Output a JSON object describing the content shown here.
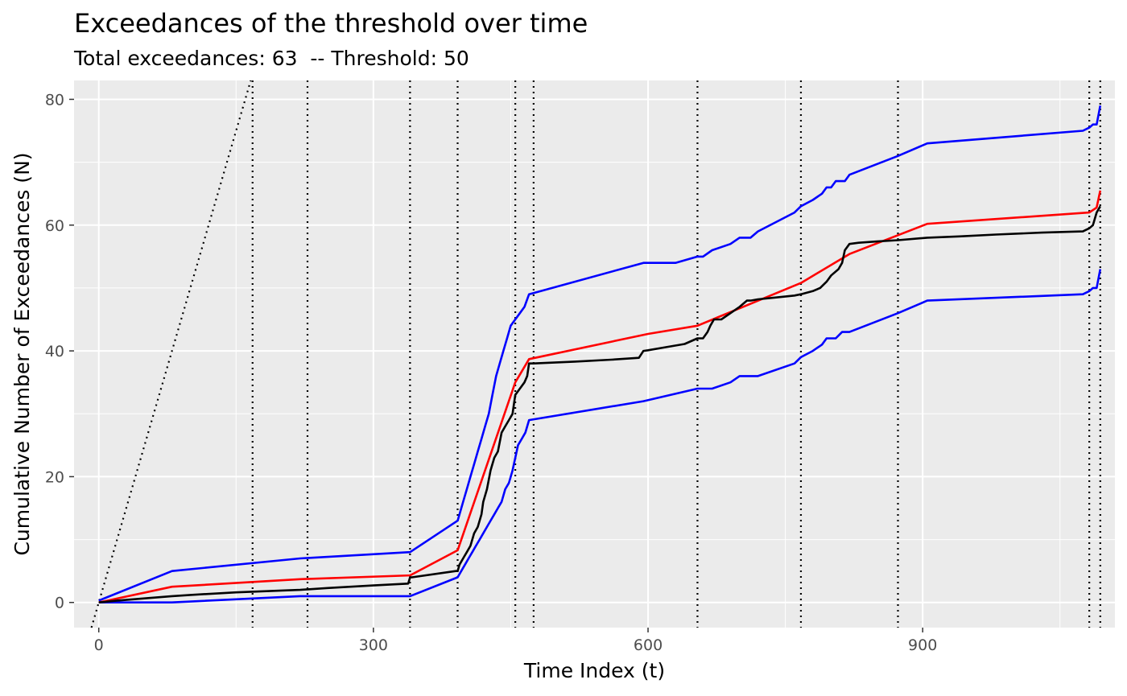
{
  "chart_data": {
    "type": "line",
    "title": "Exceedances of the threshold over time",
    "subtitle": "Total exceedances: 63  -- Threshold: 50",
    "xlabel": "Time Index (t)",
    "ylabel": "Cumulative Number of Exceedances (N)",
    "xlim": [
      -27,
      1110
    ],
    "ylim": [
      -4,
      83
    ],
    "xticks": [
      0,
      300,
      600,
      900
    ],
    "yticks": [
      0,
      20,
      40,
      60,
      80
    ],
    "grid": true,
    "legend": "none",
    "vlines": [
      168,
      228,
      340,
      392,
      455,
      475,
      654,
      767,
      873,
      1082,
      1094
    ],
    "colors": {
      "panel": "#ebebeb",
      "grid": "#ffffff",
      "observed": "#000000",
      "expected": "#ff0000",
      "bounds": "#0000ff",
      "reference": "#000000"
    },
    "series": [
      {
        "values_x": [
          0,
          20,
          80,
          100,
          150,
          200,
          220,
          250,
          300,
          338,
          340,
          342,
          390,
          392,
          394,
          398,
          402,
          406,
          410,
          414,
          418,
          420,
          424,
          428,
          432,
          436,
          440,
          444,
          448,
          452,
          455,
          460,
          465,
          468,
          470,
          475,
          520,
          560,
          590,
          595,
          600,
          620,
          640,
          654,
          660,
          665,
          668,
          672,
          680,
          690,
          700,
          708,
          712,
          720,
          740,
          760,
          767,
          780,
          788,
          795,
          800,
          808,
          812,
          815,
          820,
          830,
          850,
          873,
          905,
          940,
          980,
          1030,
          1075,
          1082,
          1086,
          1090,
          1094
        ],
        "values_y": [
          0,
          0.3,
          1,
          1.2,
          1.6,
          1.9,
          2,
          2.3,
          2.7,
          3,
          4,
          4,
          5,
          5,
          6,
          7,
          8,
          9,
          11,
          12,
          14,
          16,
          18,
          21,
          23,
          24,
          27,
          28,
          29,
          30,
          33,
          34,
          35,
          36,
          38,
          38,
          38.3,
          38.6,
          38.9,
          40,
          40.1,
          40.6,
          41.1,
          42,
          42,
          43,
          44,
          45,
          45,
          46,
          47,
          48,
          48,
          48.2,
          48.5,
          48.8,
          49,
          49.5,
          50,
          51,
          52,
          53,
          54,
          56,
          57,
          57.2,
          57.4,
          57.6,
          58,
          58.2,
          58.5,
          58.8,
          59,
          59.5,
          60,
          62,
          63
        ]
      },
      {
        "values_x": [
          0,
          80,
          220,
          340,
          392,
          455,
          470,
          600,
          654,
          767,
          820,
          905,
          1082,
          1090,
          1094
        ],
        "values_y": [
          0,
          2.5,
          3.7,
          4.3,
          8.3,
          35,
          38.7,
          42.7,
          44,
          50.8,
          55.4,
          60.2,
          62,
          62.8,
          65.5
        ]
      },
      {
        "values_x": [
          0,
          80,
          220,
          340,
          392,
          394,
          398,
          402,
          406,
          410,
          414,
          418,
          422,
          426,
          430,
          434,
          438,
          442,
          446,
          450,
          455,
          460,
          465,
          470,
          595,
          630,
          654,
          660,
          670,
          690,
          700,
          712,
          720,
          760,
          767,
          780,
          790,
          795,
          800,
          805,
          810,
          815,
          820,
          873,
          905,
          1075,
          1082,
          1086,
          1090,
          1094
        ],
        "values_y": [
          0.3,
          5,
          7,
          8,
          13,
          14,
          16,
          18,
          20,
          22,
          24,
          26,
          28,
          30,
          33,
          36,
          38,
          40,
          42,
          44,
          45,
          46,
          47,
          49,
          54,
          54,
          55,
          55,
          56,
          57,
          58,
          58,
          59,
          62,
          63,
          64,
          65,
          66,
          66,
          67,
          67,
          67,
          68,
          71,
          73,
          75,
          75.5,
          76,
          76,
          79
        ]
      },
      {
        "values_x": [
          0,
          80,
          220,
          340,
          392,
          396,
          400,
          404,
          408,
          412,
          416,
          420,
          424,
          428,
          432,
          436,
          440,
          444,
          448,
          452,
          455,
          458,
          462,
          466,
          470,
          595,
          654,
          660,
          670,
          690,
          700,
          710,
          720,
          760,
          767,
          780,
          790,
          795,
          800,
          805,
          812,
          820,
          873,
          905,
          1075,
          1082,
          1086,
          1090,
          1094
        ],
        "values_y": [
          0,
          0,
          1,
          1,
          4,
          5,
          6,
          7,
          8,
          9,
          10,
          11,
          12,
          13,
          14,
          15,
          16,
          18,
          19,
          21,
          23,
          25,
          26,
          27,
          29,
          32,
          34,
          34,
          34,
          35,
          36,
          36,
          36,
          38,
          39,
          40,
          41,
          42,
          42,
          42,
          43,
          43,
          46,
          48,
          49,
          49.5,
          50,
          50,
          53
        ]
      }
    ]
  }
}
